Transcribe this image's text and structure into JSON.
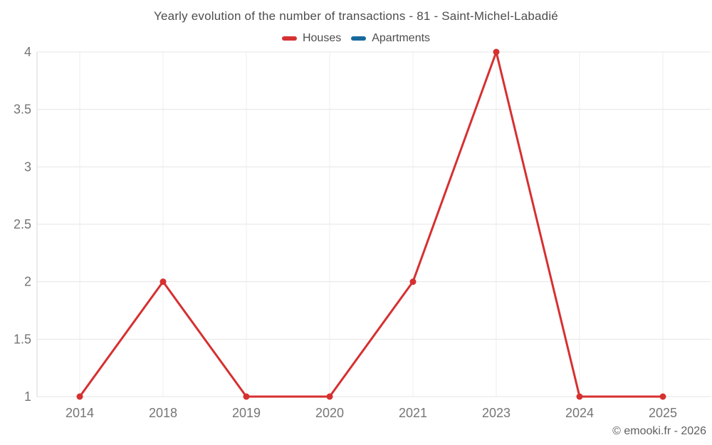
{
  "title": "Yearly evolution of the number of transactions - 81 - Saint-Michel-Labadié",
  "copyright": "© emooki.fr - 2026",
  "colors": {
    "houses": "#d63031",
    "apartments": "#17699b",
    "title_text": "#4d4d4d",
    "tick_text": "#757575",
    "grid_horizontal": "#e5e5e5",
    "grid_vertical": "#ededed",
    "axis_line": "#d6d6d6"
  },
  "chart_data": {
    "type": "line",
    "title": "Yearly evolution of the number of transactions - 81 - Saint-Michel-Labadié",
    "categories": [
      "2014",
      "2018",
      "2019",
      "2020",
      "2021",
      "2023",
      "2024",
      "2025"
    ],
    "series": [
      {
        "name": "Houses",
        "color": "#d63031",
        "values": [
          1,
          2,
          1,
          1,
          2,
          4,
          1,
          1
        ]
      },
      {
        "name": "Apartments",
        "color": "#17699b",
        "values": []
      }
    ],
    "xlabel": "",
    "ylabel": "",
    "ylim": [
      1,
      4
    ],
    "yticks": [
      1,
      1.5,
      2,
      2.5,
      3,
      3.5,
      4
    ],
    "grid": true,
    "legend_position": "top",
    "marker": "circle"
  }
}
